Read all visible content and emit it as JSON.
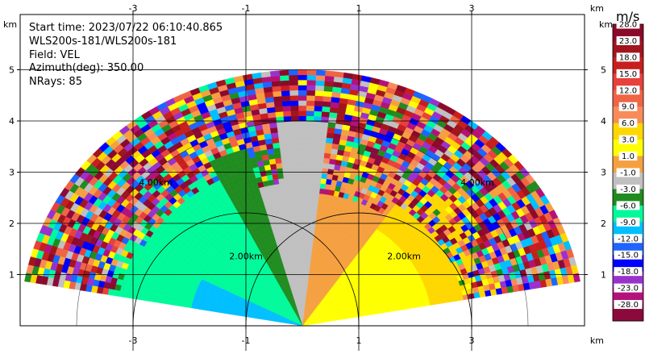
{
  "chart_data": {
    "type": "heatmap",
    "subtype": "ppi-scan",
    "info": {
      "start_time": "Start time: 2023/07/22 06:10:40.865",
      "instrument": "WLS200s-181/WLS200s-181",
      "field": "Field: VEL",
      "azimuth": "Azimuth(deg): 350.00",
      "nrays": "NRays: 85"
    },
    "x_unit": "km",
    "y_unit": "km",
    "x_ticks": [
      "-3",
      "-1",
      "1",
      "3"
    ],
    "x_tick_values": [
      -3,
      -1,
      1,
      3
    ],
    "y_ticks": [
      "1",
      "2",
      "3",
      "4",
      "5"
    ],
    "y_tick_values": [
      1,
      2,
      3,
      4,
      5
    ],
    "xlim": [
      -5,
      5
    ],
    "ylim": [
      0,
      5.8
    ],
    "sector_deg": [
      10,
      170
    ],
    "max_range_km": 5.0,
    "ring_labels": [
      "2.00km",
      "4.00km"
    ],
    "ring_km": [
      2,
      4
    ],
    "colorbar": {
      "unit": "m/s",
      "labels": [
        "28.0",
        "23.0",
        "18.0",
        "15.0",
        "12.0",
        "9.0",
        "6.0",
        "3.0",
        "1.0",
        "-1.0",
        "-3.0",
        "-6.0",
        "-9.0",
        "-12.0",
        "-15.0",
        "-18.0",
        "-23.0",
        "-28.0"
      ],
      "colors": [
        "#8b0a2a",
        "#a0151e",
        "#c81e1e",
        "#e8413c",
        "#f06446",
        "#f98b5a",
        "#ffd700",
        "#ffff00",
        "#f5a040",
        "#c0c0c0",
        "#208c20",
        "#00fa9a",
        "#00bfff",
        "#1e64ff",
        "#0000ff",
        "#9932cc",
        "#b4127a",
        "#8b0a3c"
      ]
    }
  }
}
